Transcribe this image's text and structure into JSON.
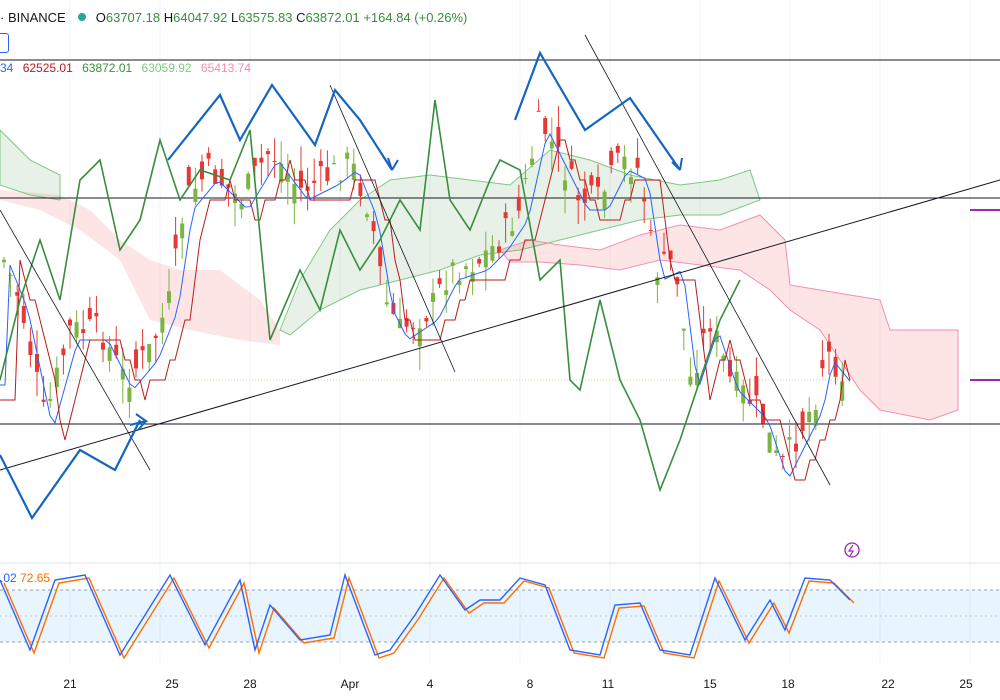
{
  "header": {
    "exchange": "· BINANCE",
    "open_label": "O",
    "open": "63707.18",
    "high_label": "H",
    "high": "64047.92",
    "low_label": "L",
    "low": "63575.83",
    "close_label": "C",
    "close": "63872.01",
    "change": "+164.84 (+0.26%)"
  },
  "ichimoku_values": [
    {
      "text": "34",
      "color": "#2962ff"
    },
    {
      "text": "62525.01",
      "color": "#b71c1c"
    },
    {
      "text": "63872.01",
      "color": "#388e3c"
    },
    {
      "text": "63059.92",
      "color": "#81c784"
    },
    {
      "text": "65413.74",
      "color": "#f48fb1"
    }
  ],
  "stoch_values": [
    {
      "text": ".02",
      "color": "#2962ff"
    },
    {
      "text": "72.65",
      "color": "#ff6d00"
    }
  ],
  "colors": {
    "up": "#7cb342",
    "down": "#e53935",
    "tenkan": "#2962ff",
    "kijun": "#b71c1c",
    "chikou": "#388e3c",
    "span_a": "#81c784",
    "span_b": "#f48fb1",
    "cloud_bull": "rgba(56,142,60,0.12)",
    "cloud_bear": "rgba(239,83,80,0.15)",
    "stoch_k": "#2962ff",
    "stoch_d": "#ff6d00",
    "band": "rgba(33,150,243,0.10)",
    "drawing_blue": "#1565c0",
    "hline": "#131722",
    "marker": "#9c27b0"
  },
  "x_axis": {
    "ticks": [
      "21",
      "25",
      "28",
      "Apr",
      "4",
      "8",
      "11",
      "15",
      "18",
      "22",
      "25"
    ]
  },
  "chart_data": {
    "type": "candlestick",
    "title": "BINANCE",
    "indicators": [
      "Ichimoku Cloud",
      "Stochastic RSI"
    ],
    "x_ticks": [
      "21",
      "25",
      "28",
      "Apr",
      "4",
      "8",
      "11",
      "15",
      "18",
      "22",
      "25"
    ],
    "last_candle": {
      "open": 63707.18,
      "high": 64047.92,
      "low": 63575.83,
      "close": 63872.01,
      "change": 164.84,
      "change_pct": 0.26
    },
    "ichimoku": {
      "tenkan": null,
      "kijun": 62525.01,
      "chikou": 63872.01,
      "span_a": 63059.92,
      "span_b": 65413.74
    },
    "stoch_rsi": {
      "k": null,
      "d": 72.65
    },
    "grid": true,
    "legend": "top-left"
  }
}
